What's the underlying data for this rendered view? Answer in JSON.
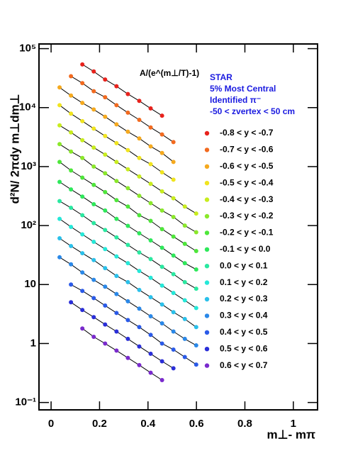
{
  "chart_data": {
    "type": "scatter",
    "y_label": "d²N/ 2πdy m⊥dm⊥",
    "x_label": "m⊥- mπ",
    "fit_label": "A/(e^(m⊥/T)-1)",
    "annotations": [
      "STAR",
      "5% Most Central",
      "Identified π⁻",
      "-50 < zvertex <  50 cm"
    ],
    "x": [
      0.035,
      0.082,
      0.129,
      0.176,
      0.223,
      0.27,
      0.317,
      0.364,
      0.411,
      0.458,
      0.505,
      0.552,
      0.599
    ],
    "xlim": [
      -0.05,
      1.1
    ],
    "ylim": [
      0.075,
      120000
    ],
    "log_y": true,
    "xticks": [
      0,
      0.2,
      0.4,
      0.6,
      0.8,
      1
    ],
    "yticks": [
      {
        "value": 0.1,
        "label": "10⁻¹"
      },
      1,
      10,
      {
        "value": 100,
        "label": "10²"
      },
      {
        "value": 1000,
        "label": "10³"
      },
      {
        "value": 10000,
        "label": "10⁴"
      },
      {
        "value": 100000,
        "label": "10⁵"
      }
    ],
    "series": [
      {
        "name": "-0.8 < y < -0.7",
        "color": "#e8221c",
        "values": [
          null,
          null,
          54000,
          41000,
          30000,
          23000,
          17000,
          13000,
          9700,
          7300,
          null,
          null,
          null
        ]
      },
      {
        "name": "-0.7 < y < -0.6",
        "color": "#f26a1f",
        "values": [
          null,
          34000,
          26000,
          19000,
          15000,
          11000,
          8200,
          6200,
          4600,
          3500,
          2600,
          null,
          null
        ]
      },
      {
        "name": "-0.6 < y < -0.5",
        "color": "#f5a91e",
        "values": [
          22000,
          16000,
          12000,
          9300,
          7000,
          5200,
          3900,
          3000,
          2200,
          1700,
          1200,
          null,
          null
        ]
      },
      {
        "name": "-0.5 < y < -0.4",
        "color": "#f0e41e",
        "values": [
          11000,
          7900,
          5900,
          4400,
          3300,
          2500,
          1900,
          1400,
          1100,
          800,
          600,
          null,
          null
        ]
      },
      {
        "name": "-0.4 < y < -0.3",
        "color": "#c8ec1e",
        "values": [
          5000,
          3800,
          2800,
          2100,
          1600,
          1200,
          900,
          680,
          510,
          380,
          290,
          210,
          160
        ]
      },
      {
        "name": "-0.3 < y < -0.2",
        "color": "#8ae82a",
        "values": [
          2400,
          1800,
          1400,
          1000,
          770,
          570,
          430,
          320,
          240,
          180,
          140,
          100,
          77
        ]
      },
      {
        "name": "-0.2 < y < -0.1",
        "color": "#4ee63a",
        "values": [
          1200,
          860,
          650,
          490,
          370,
          270,
          210,
          150,
          120,
          87,
          65,
          49,
          37
        ]
      },
      {
        "name": "-0.1 < y <  0.0",
        "color": "#2ee85a",
        "values": [
          550,
          410,
          310,
          230,
          180,
          130,
          99,
          74,
          56,
          42,
          31,
          23,
          18
        ]
      },
      {
        "name": "0.0 < y <  0.1",
        "color": "#2ae8a0",
        "values": [
          260,
          200,
          150,
          110,
          84,
          63,
          47,
          35,
          27,
          20,
          15,
          11,
          8.5
        ]
      },
      {
        "name": "0.1 < y <  0.2",
        "color": "#25e8d8",
        "values": [
          130,
          95,
          71,
          53,
          40,
          30,
          23,
          17,
          13,
          9.6,
          7.2,
          5.4,
          4.0
        ]
      },
      {
        "name": "0.2 < y <  0.3",
        "color": "#2ac0ea",
        "values": [
          61,
          45,
          34,
          26,
          19,
          14,
          11,
          8.1,
          6.1,
          4.6,
          3.4,
          2.6,
          1.9
        ]
      },
      {
        "name": "0.3 < y <  0.4",
        "color": "#2a88e8",
        "values": [
          29,
          22,
          16,
          12,
          9.2,
          6.9,
          5.2,
          3.9,
          2.9,
          2.2,
          1.6,
          1.2,
          0.93
        ]
      },
      {
        "name": "0.4 < y <  0.5",
        "color": "#2a5ae8",
        "values": [
          null,
          10,
          7.8,
          5.9,
          4.4,
          3.3,
          2.5,
          1.9,
          1.4,
          1.0,
          0.79,
          0.59,
          0.44
        ]
      },
      {
        "name": "0.5 < y <  0.6",
        "color": "#2a2ed8",
        "values": [
          null,
          5.0,
          3.7,
          2.8,
          2.1,
          1.6,
          1.2,
          0.89,
          0.67,
          0.5,
          0.38,
          null,
          null
        ]
      },
      {
        "name": "0.6 < y <  0.7",
        "color": "#7a2acd",
        "values": [
          null,
          null,
          1.8,
          1.3,
          1.0,
          0.76,
          0.57,
          0.43,
          0.32,
          0.24,
          null,
          null,
          null
        ]
      }
    ]
  }
}
